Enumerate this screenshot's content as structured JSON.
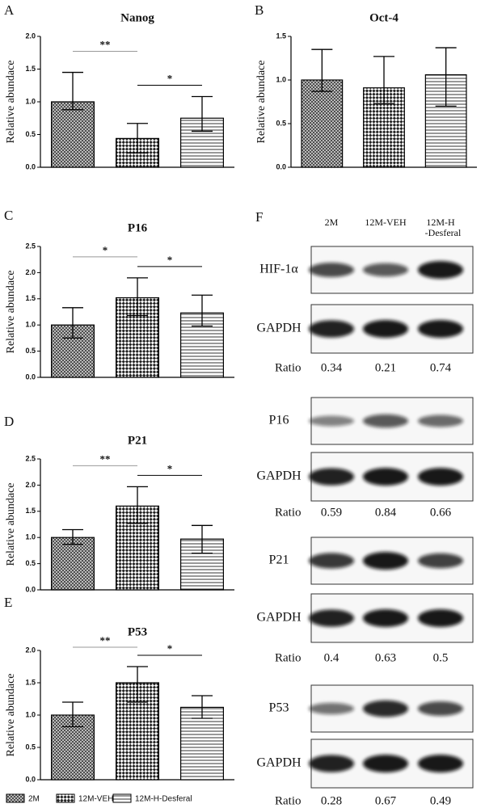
{
  "chart_data": [
    {
      "type": "bar",
      "panel": "A",
      "title": "Nanog",
      "ylabel": "Relative abundace",
      "values": [
        1.0,
        0.44,
        0.75
      ],
      "whisker_low": [
        0.88,
        0.22,
        0.55
      ],
      "whisker_high": [
        1.45,
        0.67,
        1.08
      ],
      "ylim": [
        0,
        2.0
      ],
      "yticks": [
        {
          "value": 0,
          "label": "0.0"
        },
        0.5,
        {
          "value": 1,
          "label": "1.0"
        },
        1.5,
        {
          "value": 2,
          "label": "2.0"
        }
      ],
      "significance": [
        {
          "from": 0,
          "to": 1,
          "label": "**"
        },
        {
          "from": 1,
          "to": 2,
          "label": "*"
        }
      ]
    },
    {
      "type": "bar",
      "panel": "B",
      "title": "Oct-4",
      "ylabel": "Relative abundace",
      "values": [
        1.0,
        0.91,
        1.06
      ],
      "whisker_low": [
        0.87,
        0.73,
        0.7
      ],
      "whisker_high": [
        1.35,
        1.27,
        1.37
      ],
      "ylim": [
        0,
        1.5
      ],
      "yticks": [
        {
          "value": 0,
          "label": "0.0"
        },
        0.5,
        {
          "value": 1,
          "label": "1.0"
        },
        1.5
      ],
      "significance": []
    },
    {
      "type": "bar",
      "panel": "C",
      "title": "P16",
      "ylabel": "Relative abundace",
      "values": [
        1.0,
        1.52,
        1.23
      ],
      "whisker_low": [
        0.75,
        1.18,
        0.98
      ],
      "whisker_high": [
        1.33,
        1.9,
        1.57
      ],
      "ylim": [
        0,
        2.5
      ],
      "yticks": [
        {
          "value": 0,
          "label": "0.0"
        },
        0.5,
        {
          "value": 1,
          "label": "1.0"
        },
        1.5,
        {
          "value": 2,
          "label": "2.0"
        },
        2.5
      ],
      "significance": [
        {
          "from": 0,
          "to": 1,
          "label": "*"
        },
        {
          "from": 1,
          "to": 2,
          "label": "*"
        }
      ]
    },
    {
      "type": "bar",
      "panel": "D",
      "title": "P21",
      "ylabel": "Relative abundace",
      "values": [
        1.0,
        1.6,
        0.97
      ],
      "whisker_low": [
        0.87,
        1.27,
        0.7
      ],
      "whisker_high": [
        1.15,
        1.97,
        1.23
      ],
      "ylim": [
        0,
        2.5
      ],
      "yticks": [
        {
          "value": 0,
          "label": "0.0"
        },
        0.5,
        {
          "value": 1,
          "label": "1.0"
        },
        1.5,
        {
          "value": 2,
          "label": "2.0"
        },
        2.5
      ],
      "significance": [
        {
          "from": 0,
          "to": 1,
          "label": "**"
        },
        {
          "from": 1,
          "to": 2,
          "label": "*"
        }
      ]
    },
    {
      "type": "bar",
      "panel": "E",
      "title": "P53",
      "ylabel": "Relative abundace",
      "values": [
        1.0,
        1.5,
        1.12
      ],
      "whisker_low": [
        0.82,
        1.2,
        0.95
      ],
      "whisker_high": [
        1.2,
        1.75,
        1.3
      ],
      "ylim": [
        0,
        2.0
      ],
      "yticks": [
        {
          "value": 0,
          "label": "0.0"
        },
        0.5,
        {
          "value": 1,
          "label": "1.0"
        },
        1.5,
        {
          "value": 2,
          "label": "2.0"
        }
      ],
      "significance": [
        {
          "from": 0,
          "to": 1,
          "label": "**"
        },
        {
          "from": 1,
          "to": 2,
          "label": "*"
        }
      ]
    }
  ],
  "legend": {
    "entries": [
      {
        "name": "2M",
        "pattern": "crosshatch"
      },
      {
        "name": "12M-VEH",
        "pattern": "checker"
      },
      {
        "name": "12M-H-Desferal",
        "pattern": "hlines"
      }
    ]
  },
  "blots": {
    "panel": "F",
    "columns": [
      [
        "2M"
      ],
      [
        "12M-VEH"
      ],
      [
        "12M-H",
        "-Desferal"
      ]
    ],
    "rows": [
      {
        "target": "HIF-1α",
        "loading": "GAPDH",
        "ratio_label": "Ratio",
        "ratios": [
          0.34,
          0.21,
          0.74
        ]
      },
      {
        "target": "P16",
        "loading": "GAPDH",
        "ratio_label": "Ratio",
        "ratios": [
          0.59,
          0.84,
          0.66
        ]
      },
      {
        "target": "P21",
        "loading": "GAPDH",
        "ratio_label": "Ratio",
        "ratios": [
          0.4,
          0.63,
          0.5
        ]
      },
      {
        "target": "P53",
        "loading": "GAPDH",
        "ratio_label": "Ratio",
        "ratios": [
          0.28,
          0.67,
          0.49
        ]
      }
    ]
  }
}
